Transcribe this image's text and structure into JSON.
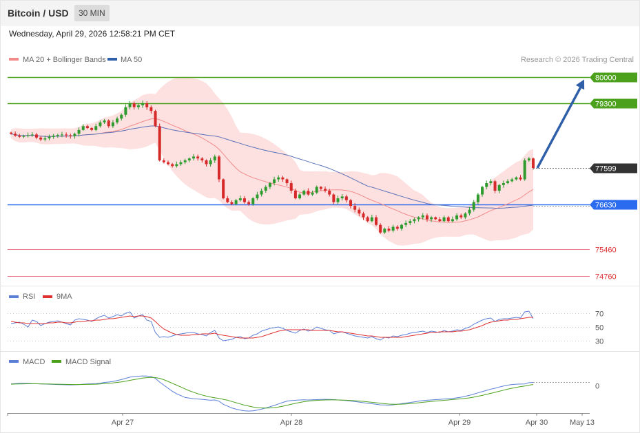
{
  "header": {
    "title": "Bitcoin / USD",
    "timeframe": "30 MIN"
  },
  "datetime": "Wednesday, April 29, 2026 12:58:21 PM CET",
  "legend": {
    "ma20_label": "MA 20 + Bollinger Bands",
    "ma50_label": "MA 50"
  },
  "copyright": "Research © 2026 Trading Central",
  "rsi_legend": {
    "rsi": "RSI",
    "ma": "9MA"
  },
  "macd_legend": {
    "macd": "MACD",
    "signal": "MACD Signal"
  },
  "colors": {
    "up": "#2e9b2e",
    "down": "#d62a2a",
    "ma20": "#f28a8a",
    "ma50": "#5a72b8",
    "bands": "#fde0e0",
    "resistance": "#4ca11c",
    "support": "#e67a85",
    "pivot": "#2a6bf0",
    "arrow": "#2f5fa8",
    "rsi": "#5b7fd6",
    "rsi_ma": "#e03131",
    "macd": "#5b7fd6",
    "macd_signal": "#4ca11c"
  },
  "chart_data": [
    {
      "type": "candlestick",
      "title": "Bitcoin / USD",
      "ylim": [
        74500,
        80300
      ],
      "x_labels": [
        "Apr 27",
        "Apr 28",
        "Apr 29",
        "Apr 30",
        "May 13"
      ],
      "last_price": "77599",
      "levels": [
        {
          "value": 80000,
          "label": "80000",
          "kind": "resistance"
        },
        {
          "value": 79300,
          "label": "79300",
          "kind": "resistance"
        },
        {
          "value": 76630,
          "label": "76630",
          "kind": "pivot"
        },
        {
          "value": 75460,
          "label": "75460",
          "kind": "support"
        },
        {
          "value": 74760,
          "label": "74760",
          "kind": "support"
        }
      ],
      "forecast_arrow": {
        "from": 77599,
        "to": 80000
      },
      "close": [
        78500,
        78450,
        78420,
        78440,
        78460,
        78480,
        78400,
        78350,
        78380,
        78420,
        78450,
        78470,
        78480,
        78460,
        78440,
        78500,
        78600,
        78700,
        78650,
        78600,
        78700,
        78800,
        78850,
        78700,
        78800,
        78900,
        79000,
        79200,
        79300,
        79200,
        79250,
        79300,
        79200,
        79100,
        78700,
        77800,
        77750,
        77700,
        77650,
        77700,
        77750,
        77800,
        77850,
        77900,
        77850,
        77800,
        77700,
        77800,
        77900,
        77300,
        76800,
        76700,
        76650,
        76750,
        76800,
        76700,
        76650,
        76800,
        76900,
        77000,
        77100,
        77200,
        77300,
        77350,
        77300,
        77200,
        77000,
        76800,
        76900,
        77000,
        76900,
        76950,
        77100,
        77050,
        77000,
        76900,
        76700,
        76800,
        76850,
        76750,
        76600,
        76500,
        76400,
        76300,
        76200,
        76300,
        76100,
        75900,
        76000,
        75950,
        76050,
        76000,
        76100,
        76150,
        76200,
        76250,
        76300,
        76350,
        76250,
        76300,
        76250,
        76200,
        76300,
        76200,
        76250,
        76350,
        76300,
        76400,
        76500,
        76700,
        76900,
        77100,
        77200,
        77250,
        77000,
        77150,
        77200,
        77250,
        77300,
        77350,
        77300,
        77800,
        77850,
        77599
      ],
      "rsi_ylim": [
        20,
        80
      ],
      "rsi_ticks": [
        "70",
        "50",
        "30"
      ],
      "rsi": [
        55,
        56,
        57,
        54,
        50,
        60,
        58,
        52,
        55,
        57,
        58,
        59,
        57,
        55,
        53,
        60,
        62,
        61,
        60,
        58,
        62,
        65,
        67,
        63,
        65,
        68,
        66,
        70,
        72,
        63,
        66,
        68,
        60,
        58,
        42,
        35,
        36,
        35,
        37,
        39,
        40,
        41,
        42,
        42,
        40,
        39,
        37,
        42,
        45,
        34,
        30,
        31,
        32,
        35,
        36,
        33,
        34,
        38,
        40,
        44,
        46,
        48,
        49,
        50,
        48,
        45,
        43,
        41,
        45,
        47,
        44,
        46,
        50,
        48,
        46,
        45,
        40,
        42,
        43,
        41,
        39,
        37,
        36,
        35,
        34,
        36,
        33,
        31,
        35,
        34,
        37,
        36,
        38,
        39,
        41,
        42,
        43,
        44,
        42,
        44,
        43,
        42,
        45,
        43,
        44,
        46,
        45,
        48,
        50,
        54,
        57,
        60,
        62,
        63,
        58,
        61,
        62,
        62,
        63,
        64,
        63,
        72,
        73,
        62
      ],
      "rsi_ma": [
        58,
        57,
        56,
        56,
        55,
        55,
        55,
        55,
        55,
        56,
        56,
        57,
        57,
        56,
        56,
        57,
        58,
        58,
        59,
        59,
        60,
        60,
        61,
        62,
        62,
        63,
        64,
        65,
        66,
        65,
        66,
        66,
        65,
        63,
        58,
        52,
        47,
        44,
        41,
        39,
        38,
        38,
        38,
        39,
        39,
        40,
        40,
        40,
        41,
        39,
        38,
        37,
        36,
        35,
        34,
        34,
        34,
        34,
        35,
        36,
        38,
        40,
        42,
        44,
        45,
        46,
        46,
        46,
        46,
        46,
        46,
        45,
        45,
        45,
        45,
        45,
        44,
        43,
        43,
        42,
        41,
        40,
        39,
        38,
        37,
        37,
        36,
        35,
        35,
        35,
        35,
        35,
        35,
        36,
        37,
        38,
        39,
        40,
        41,
        42,
        42,
        43,
        43,
        43,
        43,
        44,
        44,
        45,
        46,
        48,
        50,
        52,
        55,
        57,
        58,
        59,
        60,
        60,
        61,
        61,
        62,
        63,
        64,
        64
      ],
      "macd_ylim": [
        -420,
        250
      ],
      "macd_ticks": [
        "0"
      ],
      "macd": [
        30,
        35,
        40,
        40,
        38,
        35,
        33,
        30,
        28,
        25,
        22,
        20,
        18,
        16,
        14,
        15,
        20,
        25,
        30,
        32,
        35,
        42,
        55,
        60,
        70,
        85,
        100,
        120,
        140,
        150,
        155,
        160,
        158,
        150,
        120,
        60,
        10,
        -40,
        -90,
        -130,
        -160,
        -190,
        -200,
        -210,
        -215,
        -220,
        -228,
        -235,
        -230,
        -250,
        -300,
        -330,
        -360,
        -380,
        -395,
        -405,
        -410,
        -405,
        -395,
        -380,
        -360,
        -340,
        -320,
        -295,
        -270,
        -250,
        -240,
        -235,
        -230,
        -228,
        -230,
        -228,
        -225,
        -222,
        -220,
        -222,
        -225,
        -230,
        -235,
        -240,
        -248,
        -255,
        -265,
        -275,
        -285,
        -292,
        -300,
        -310,
        -312,
        -315,
        -310,
        -300,
        -290,
        -280,
        -270,
        -260,
        -250,
        -240,
        -235,
        -230,
        -225,
        -220,
        -215,
        -210,
        -205,
        -195,
        -185,
        -170,
        -155,
        -135,
        -115,
        -95,
        -75,
        -55,
        -40,
        -20,
        -5,
        10,
        20,
        25,
        28,
        30,
        50,
        55
      ],
      "macd_signal": [
        25,
        28,
        30,
        31,
        32,
        32,
        32,
        31,
        30,
        29,
        27,
        26,
        24,
        22,
        21,
        20,
        20,
        21,
        22,
        24,
        26,
        30,
        35,
        40,
        47,
        55,
        64,
        75,
        88,
        100,
        112,
        124,
        132,
        136,
        133,
        120,
        98,
        70,
        40,
        10,
        -20,
        -50,
        -80,
        -105,
        -130,
        -150,
        -168,
        -182,
        -195,
        -205,
        -220,
        -235,
        -255,
        -275,
        -295,
        -315,
        -330,
        -345,
        -355,
        -360,
        -362,
        -360,
        -355,
        -345,
        -332,
        -315,
        -300,
        -285,
        -270,
        -258,
        -250,
        -243,
        -237,
        -233,
        -230,
        -229,
        -229,
        -230,
        -232,
        -235,
        -238,
        -242,
        -248,
        -253,
        -260,
        -268,
        -275,
        -283,
        -290,
        -297,
        -300,
        -300,
        -298,
        -294,
        -289,
        -283,
        -276,
        -268,
        -261,
        -254,
        -248,
        -242,
        -236,
        -230,
        -224,
        -218,
        -212,
        -204,
        -195,
        -184,
        -170,
        -156,
        -140,
        -123,
        -106,
        -89,
        -72,
        -55,
        -40,
        -26,
        -14,
        -3,
        10,
        20
      ]
    }
  ]
}
